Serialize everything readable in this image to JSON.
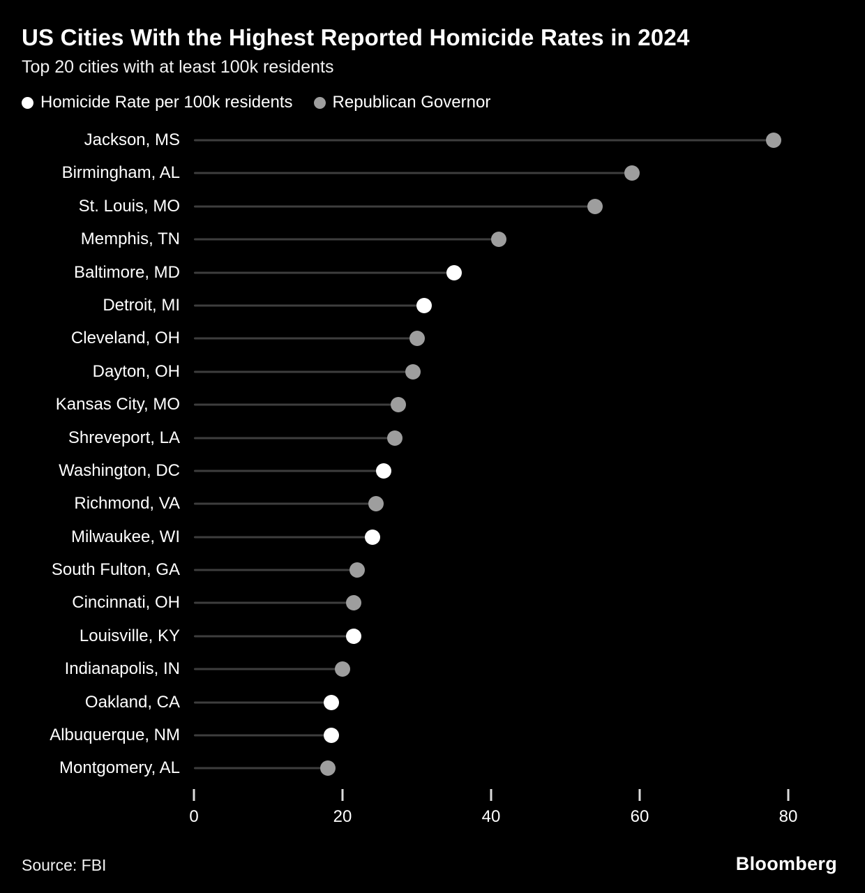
{
  "page": {
    "title": "US Cities With the Highest Reported Homicide Rates in 2024",
    "subtitle": "Top 20 cities with at least 100k residents",
    "source": "Source: FBI",
    "brand": "Bloomberg"
  },
  "legend": {
    "items": [
      {
        "label": "Homicide Rate per 100k residents",
        "color": "#ffffff",
        "key": "homicide_rate"
      },
      {
        "label": "Republican Governor",
        "color": "#9e9e9e",
        "key": "republican_governor"
      }
    ]
  },
  "chart_data": {
    "type": "bar",
    "variant": "lollipop",
    "orientation": "horizontal",
    "title": "US Cities With the Highest Reported Homicide Rates in 2024",
    "subtitle": "Top 20 cities with at least 100k residents",
    "xlabel": "",
    "ylabel": "",
    "xlim": [
      0,
      80
    ],
    "x_ticks": [
      0,
      20,
      40,
      60,
      80
    ],
    "grid": false,
    "legend_position": "top",
    "categories": [
      "Jackson, MS",
      "Birmingham, AL",
      "St. Louis, MO",
      "Memphis, TN",
      "Baltimore, MD",
      "Detroit, MI",
      "Cleveland, OH",
      "Dayton, OH",
      "Kansas City, MO",
      "Shreveport, LA",
      "Washington, DC",
      "Richmond, VA",
      "Milwaukee, WI",
      "South Fulton, GA",
      "Cincinnati, OH",
      "Louisville, KY",
      "Indianapolis, IN",
      "Oakland, CA",
      "Albuquerque, NM",
      "Montgomery, AL"
    ],
    "values": [
      78,
      59,
      54,
      41,
      35,
      31,
      30,
      29.5,
      27.5,
      27,
      25.5,
      24.5,
      24,
      22,
      21.5,
      21.5,
      20,
      18.5,
      18.5,
      18
    ],
    "republican_governor": [
      true,
      true,
      true,
      true,
      false,
      false,
      true,
      true,
      true,
      true,
      false,
      true,
      false,
      true,
      true,
      false,
      true,
      false,
      false,
      true
    ],
    "colors": {
      "homicide_rate_dot": "#ffffff",
      "republican_governor_dot": "#9e9e9e",
      "stem": "#3e3e3e"
    }
  }
}
